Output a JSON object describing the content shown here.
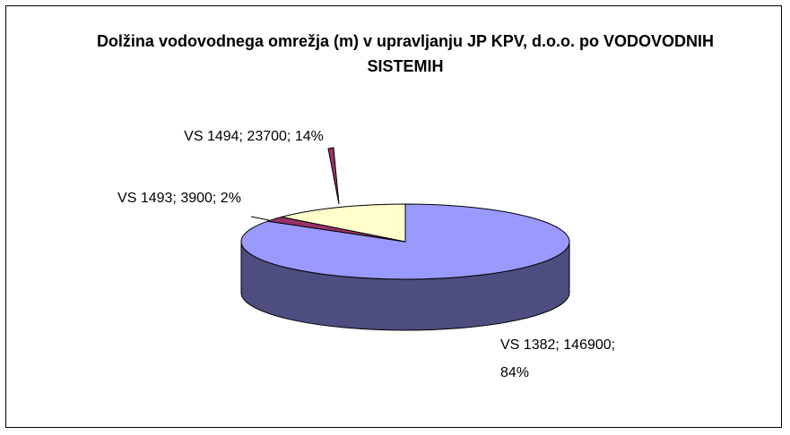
{
  "chart_data": {
    "type": "pie",
    "title": "Dolžina vodovodnega omrežja (m) v upravljanju JP KPV, d.o.o. po VODOVODNIH SISTEMIH",
    "categories": [
      "VS 1382",
      "VS 1493",
      "VS 1494"
    ],
    "values": [
      146900,
      3900,
      23700
    ],
    "value_labels": [
      "VS 1382; 146900; 84%",
      "VS 1493; 3900; 2%",
      "VS 1494; 23700; 14%"
    ],
    "colors": [
      "#9999ff",
      "#993366",
      "#ffffcc"
    ]
  }
}
